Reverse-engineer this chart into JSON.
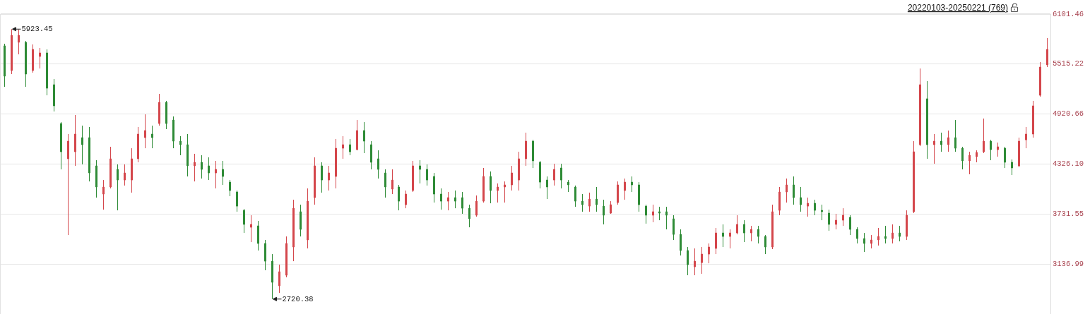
{
  "chart_data": {
    "type": "candlestick",
    "categories": [
      null,
      null,
      null,
      null,
      null,
      null,
      null,
      null,
      null,
      null,
      null,
      null,
      null,
      null,
      null,
      null,
      null,
      null,
      null,
      null,
      null,
      null,
      null,
      null,
      null,
      null,
      null,
      null,
      null,
      null,
      null,
      null,
      null,
      null,
      null,
      null,
      null,
      null,
      null,
      null,
      null,
      null,
      null,
      null,
      null,
      null,
      null,
      null,
      null,
      null,
      null,
      null,
      null,
      null,
      null,
      null,
      null,
      null,
      null,
      null,
      null,
      null,
      null,
      null,
      null,
      null,
      null,
      null,
      null,
      null,
      null,
      null,
      null,
      null,
      null,
      null,
      null,
      null,
      null,
      null,
      null,
      null,
      null,
      null,
      null,
      null,
      null,
      null,
      null,
      null,
      null,
      null,
      null,
      null,
      null,
      null,
      null,
      null,
      null,
      null,
      null,
      null,
      null,
      null,
      null,
      null,
      null,
      null,
      null,
      null,
      null,
      null,
      null,
      null,
      null,
      null,
      null,
      null,
      null,
      null,
      null,
      null,
      null,
      null,
      null,
      null,
      null,
      null,
      null,
      null,
      null,
      null,
      null,
      null,
      null,
      null,
      null,
      null,
      null,
      null,
      null,
      null,
      null,
      null,
      null,
      null,
      null,
      null,
      null
    ],
    "ohlc": [
      [
        5725,
        5750,
        5239,
        5365
      ],
      [
        5432,
        5923.45,
        5390,
        5850
      ],
      [
        5767,
        5917,
        5624,
        5850
      ],
      [
        5767,
        5783,
        5239,
        5390
      ],
      [
        5432,
        5742,
        5407,
        5683
      ],
      [
        5599,
        5700,
        5456,
        5641
      ],
      [
        5641,
        5683,
        5138,
        5222
      ],
      [
        5264,
        5331,
        4946,
        5013
      ],
      [
        4803,
        4820,
        4259,
        4468
      ],
      [
        4385,
        4678,
        3480,
        4594
      ],
      [
        4468,
        4904,
        4301,
        4678
      ],
      [
        4636,
        4778,
        4318,
        4552
      ],
      [
        4636,
        4762,
        4116,
        4217
      ],
      [
        4301,
        4368,
        3924,
        4050
      ],
      [
        3966,
        4133,
        3781,
        4050
      ],
      [
        4050,
        4527,
        4033,
        4385
      ],
      [
        4259,
        4318,
        3773,
        4133
      ],
      [
        4133,
        4318,
        4067,
        4217
      ],
      [
        4133,
        4510,
        3983,
        4385
      ],
      [
        4385,
        4762,
        4343,
        4678
      ],
      [
        4636,
        4912,
        4510,
        4720
      ],
      [
        4678,
        4778,
        4510,
        4636
      ],
      [
        4803,
        5155,
        4778,
        5055
      ],
      [
        5055,
        5072,
        4737,
        4803
      ],
      [
        4845,
        4887,
        4510,
        4594
      ],
      [
        4594,
        4653,
        4427,
        4552
      ],
      [
        4552,
        4678,
        4175,
        4301
      ],
      [
        4301,
        4444,
        4116,
        4343
      ],
      [
        4343,
        4427,
        4150,
        4259
      ],
      [
        4301,
        4402,
        4133,
        4217
      ],
      [
        4217,
        4360,
        4033,
        4259
      ],
      [
        4259,
        4360,
        4075,
        4175
      ],
      [
        4108,
        4133,
        3941,
        4008
      ],
      [
        3991,
        4008,
        3757,
        3823
      ],
      [
        3773,
        3790,
        3505,
        3606
      ],
      [
        3572,
        3715,
        3397,
        3606
      ],
      [
        3589,
        3648,
        3296,
        3380
      ],
      [
        3380,
        3422,
        3062,
        3170
      ],
      [
        3170,
        3254,
        2720.38,
        2919
      ],
      [
        2877,
        3128,
        2793,
        3045
      ],
      [
        3003,
        3463,
        2978,
        3380
      ],
      [
        3338,
        3899,
        3170,
        3798
      ],
      [
        3757,
        3840,
        3463,
        3547
      ],
      [
        3422,
        4033,
        3321,
        3882
      ],
      [
        3924,
        4402,
        3840,
        4301
      ],
      [
        4301,
        4343,
        3983,
        4133
      ],
      [
        4133,
        4301,
        4008,
        4217
      ],
      [
        4175,
        4619,
        4033,
        4510
      ],
      [
        4510,
        4653,
        4385,
        4552
      ],
      [
        4552,
        4619,
        4427,
        4468
      ],
      [
        4493,
        4845,
        4485,
        4720
      ],
      [
        4720,
        4820,
        4452,
        4594
      ],
      [
        4552,
        4594,
        4259,
        4343
      ],
      [
        4385,
        4485,
        4150,
        4259
      ],
      [
        4217,
        4259,
        3924,
        4050
      ],
      [
        4025,
        4259,
        3966,
        4133
      ],
      [
        4050,
        4075,
        3773,
        3882
      ],
      [
        3840,
        4008,
        3798,
        3966
      ],
      [
        4008,
        4360,
        3991,
        4301
      ],
      [
        4301,
        4368,
        4092,
        4259
      ],
      [
        4259,
        4318,
        4067,
        4133
      ],
      [
        4175,
        4217,
        3865,
        3966
      ],
      [
        3966,
        4033,
        3781,
        3882
      ],
      [
        3882,
        3991,
        3773,
        3924
      ],
      [
        3924,
        4008,
        3798,
        3882
      ],
      [
        3924,
        3991,
        3732,
        3798
      ],
      [
        3798,
        3840,
        3572,
        3673
      ],
      [
        3715,
        3949,
        3698,
        3882
      ],
      [
        3882,
        4276,
        3865,
        4175
      ],
      [
        4175,
        4234,
        3857,
        4008
      ],
      [
        4008,
        4092,
        3865,
        4050
      ],
      [
        4050,
        4116,
        3865,
        4075
      ],
      [
        4075,
        4301,
        4008,
        4217
      ],
      [
        4133,
        4468,
        4008,
        4385
      ],
      [
        4385,
        4695,
        4301,
        4594
      ],
      [
        4594,
        4610,
        4276,
        4360
      ],
      [
        4343,
        4360,
        4033,
        4108
      ],
      [
        4133,
        4175,
        3907,
        4050
      ],
      [
        4133,
        4326,
        4067,
        4259
      ],
      [
        4276,
        4326,
        4033,
        4133
      ],
      [
        4108,
        4133,
        3991,
        4075
      ],
      [
        4050,
        4067,
        3815,
        3882
      ],
      [
        3882,
        3966,
        3757,
        3840
      ],
      [
        3823,
        3983,
        3757,
        3907
      ],
      [
        3907,
        4050,
        3757,
        3840
      ],
      [
        3823,
        3899,
        3606,
        3715
      ],
      [
        3740,
        3882,
        3732,
        3840
      ],
      [
        3865,
        4116,
        3840,
        4075
      ],
      [
        4008,
        4150,
        3899,
        4108
      ],
      [
        4108,
        4175,
        3991,
        4075
      ],
      [
        4075,
        4108,
        3757,
        3840
      ],
      [
        3823,
        3840,
        3615,
        3715
      ],
      [
        3715,
        3840,
        3632,
        3757
      ],
      [
        3757,
        3815,
        3656,
        3740
      ],
      [
        3757,
        3815,
        3547,
        3715
      ],
      [
        3673,
        3715,
        3422,
        3488
      ],
      [
        3488,
        3547,
        3237,
        3296
      ],
      [
        3296,
        3338,
        3003,
        3128
      ],
      [
        3103,
        3321,
        3003,
        3170
      ],
      [
        3153,
        3338,
        3020,
        3254
      ],
      [
        3254,
        3380,
        3145,
        3338
      ],
      [
        3321,
        3564,
        3254,
        3505
      ],
      [
        3505,
        3606,
        3338,
        3463
      ],
      [
        3463,
        3547,
        3321,
        3505
      ],
      [
        3505,
        3715,
        3488,
        3606
      ],
      [
        3606,
        3656,
        3397,
        3505
      ],
      [
        3505,
        3589,
        3405,
        3547
      ],
      [
        3547,
        3589,
        3380,
        3463
      ],
      [
        3463,
        3480,
        3254,
        3338
      ],
      [
        3338,
        3840,
        3313,
        3757
      ],
      [
        3773,
        4050,
        3715,
        3991
      ],
      [
        3991,
        4150,
        3865,
        4075
      ],
      [
        4075,
        4175,
        3840,
        3924
      ],
      [
        3924,
        4050,
        3757,
        3840
      ],
      [
        3823,
        3924,
        3698,
        3857
      ],
      [
        3857,
        3899,
        3715,
        3773
      ],
      [
        3773,
        3840,
        3656,
        3757
      ],
      [
        3740,
        3781,
        3530,
        3606
      ],
      [
        3606,
        3732,
        3547,
        3656
      ],
      [
        3656,
        3798,
        3589,
        3715
      ],
      [
        3690,
        3715,
        3480,
        3547
      ],
      [
        3547,
        3572,
        3380,
        3438
      ],
      [
        3438,
        3505,
        3279,
        3380
      ],
      [
        3380,
        3480,
        3321,
        3422
      ],
      [
        3422,
        3564,
        3355,
        3463
      ],
      [
        3463,
        3589,
        3380,
        3438
      ],
      [
        3438,
        3606,
        3380,
        3505
      ],
      [
        3505,
        3589,
        3405,
        3463
      ],
      [
        3463,
        3773,
        3422,
        3715
      ],
      [
        3757,
        4594,
        3740,
        4468
      ],
      [
        4552,
        5456,
        4535,
        5264
      ],
      [
        5097,
        5306,
        4385,
        4552
      ],
      [
        4552,
        4678,
        4326,
        4594
      ],
      [
        4594,
        4695,
        4468,
        4552
      ],
      [
        4552,
        4720,
        4468,
        4636
      ],
      [
        4636,
        4845,
        4468,
        4510
      ],
      [
        4510,
        4527,
        4259,
        4360
      ],
      [
        4360,
        4468,
        4201,
        4427
      ],
      [
        4410,
        4485,
        4343,
        4460
      ],
      [
        4468,
        4862,
        4452,
        4594
      ],
      [
        4594,
        4610,
        4368,
        4493
      ],
      [
        4493,
        4577,
        4410,
        4527
      ],
      [
        4510,
        4527,
        4276,
        4343
      ],
      [
        4343,
        4377,
        4192,
        4276
      ],
      [
        4301,
        4636,
        4284,
        4594
      ],
      [
        4610,
        4762,
        4510,
        4678
      ],
      [
        4678,
        5072,
        4636,
        5013
      ],
      [
        5138,
        5532,
        5122,
        5473
      ],
      [
        5499,
        5817,
        5473,
        5683
      ]
    ],
    "colors": [
      "#2e8b36",
      "#d4464b",
      "#d4464b",
      "#2e8b36",
      "#d4464b",
      "#d4464b",
      "#2e8b36",
      "#2e8b36",
      "#2e8b36",
      "#d4464b",
      "#d4464b",
      "#2e8b36",
      "#2e8b36",
      "#2e8b36",
      "#d4464b",
      "#d4464b",
      "#2e8b36",
      "#d4464b",
      "#d4464b",
      "#d4464b",
      "#d4464b",
      "#2e8b36",
      "#d4464b",
      "#2e8b36",
      "#2e8b36",
      "#2e8b36",
      "#2e8b36",
      "#d4464b",
      "#2e8b36",
      "#2e8b36",
      "#d4464b",
      "#2e8b36",
      "#2e8b36",
      "#2e8b36",
      "#2e8b36",
      "#d4464b",
      "#2e8b36",
      "#2e8b36",
      "#2e8b36",
      "#d4464b",
      "#d4464b",
      "#d4464b",
      "#2e8b36",
      "#d4464b",
      "#d4464b",
      "#2e8b36",
      "#d4464b",
      "#d4464b",
      "#d4464b",
      "#2e8b36",
      "#d4464b",
      "#2e8b36",
      "#2e8b36",
      "#2e8b36",
      "#2e8b36",
      "#d4464b",
      "#2e8b36",
      "#d4464b",
      "#d4464b",
      "#2e8b36",
      "#2e8b36",
      "#2e8b36",
      "#2e8b36",
      "#d4464b",
      "#2e8b36",
      "#2e8b36",
      "#2e8b36",
      "#d4464b",
      "#d4464b",
      "#2e8b36",
      "#d4464b",
      "#d4464b",
      "#d4464b",
      "#d4464b",
      "#d4464b",
      "#2e8b36",
      "#2e8b36",
      "#2e8b36",
      "#d4464b",
      "#2e8b36",
      "#2e8b36",
      "#2e8b36",
      "#2e8b36",
      "#d4464b",
      "#2e8b36",
      "#2e8b36",
      "#d4464b",
      "#d4464b",
      "#d4464b",
      "#2e8b36",
      "#2e8b36",
      "#2e8b36",
      "#d4464b",
      "#2e8b36",
      "#2e8b36",
      "#2e8b36",
      "#2e8b36",
      "#2e8b36",
      "#d4464b",
      "#d4464b",
      "#d4464b",
      "#d4464b",
      "#2e8b36",
      "#d4464b",
      "#d4464b",
      "#2e8b36",
      "#d4464b",
      "#2e8b36",
      "#2e8b36",
      "#d4464b",
      "#d4464b",
      "#d4464b",
      "#2e8b36",
      "#2e8b36",
      "#d4464b",
      "#2e8b36",
      "#2e8b36",
      "#2e8b36",
      "#d4464b",
      "#d4464b",
      "#2e8b36",
      "#2e8b36",
      "#2e8b36",
      "#d4464b",
      "#d4464b",
      "#2e8b36",
      "#d4464b",
      "#2e8b36",
      "#d4464b",
      "#d4464b",
      "#d4464b",
      "#2e8b36",
      "#d4464b",
      "#2e8b36",
      "#d4464b",
      "#2e8b36",
      "#2e8b36",
      "#d4464b",
      "#d4464b",
      "#d4464b",
      "#2e8b36",
      "#d4464b",
      "#2e8b36",
      "#2e8b36",
      "#d4464b",
      "#d4464b",
      "#d4464b",
      "#d4464b",
      "#d4464b"
    ],
    "ylim": [
      2543,
      6101.46
    ],
    "yticks": [
      3136.99,
      3731.55,
      {
        "value": 4326.1,
        "label": "4326.10"
      },
      4920.66,
      5515.22,
      6101.46
    ],
    "grid": "y",
    "tick_labels": "y",
    "annotations": [
      "20220103-20250221 (769)",
      "5923.45",
      "2720.38"
    ]
  }
}
